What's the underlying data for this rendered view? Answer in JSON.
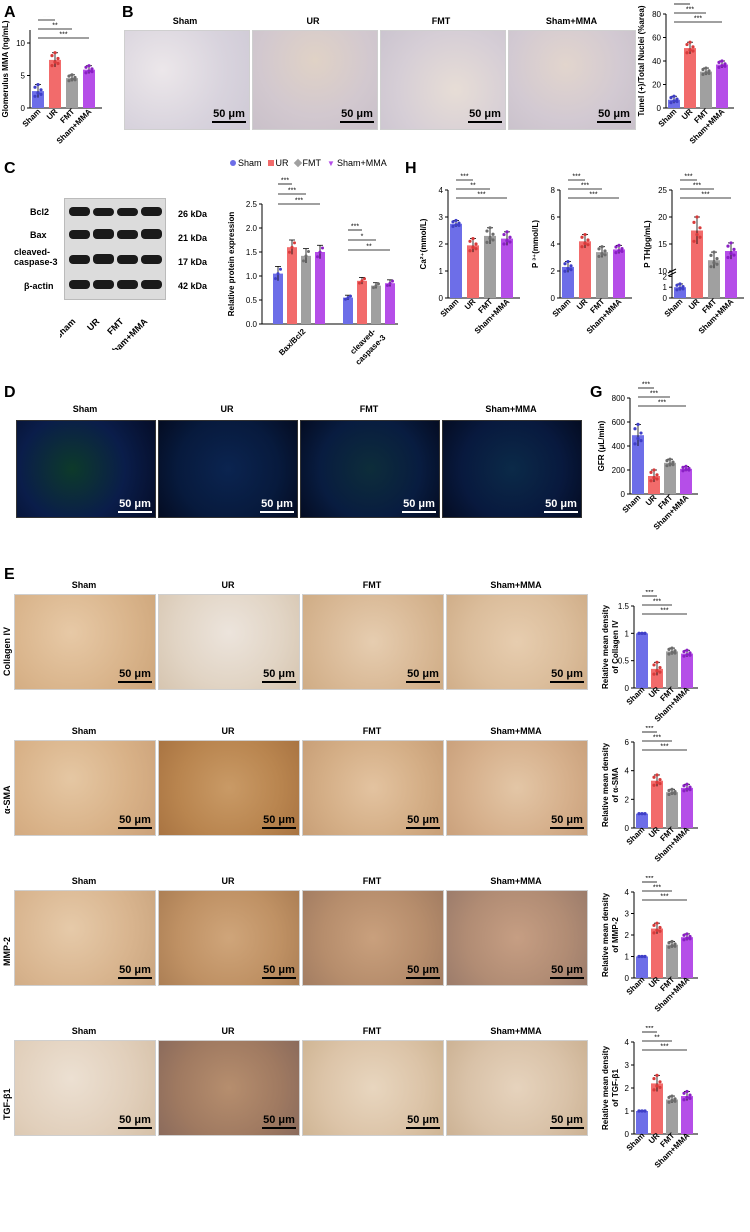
{
  "panels": {
    "A": "A",
    "B": "B",
    "C": "C",
    "D": "D",
    "E": "E",
    "G": "G",
    "H": "H"
  },
  "groups": [
    "Sham",
    "UR",
    "FMT",
    "Sham+MMA"
  ],
  "colors": {
    "Sham": "#6d6ee8",
    "UR": "#f26b6b",
    "FMT": "#a0a0a0",
    "Sham+MMA": "#b54ee8",
    "sham_dot": "#3f3fc7",
    "ur_dot": "#d83a3a",
    "fmt_dot": "#6c6c6c",
    "mma_dot": "#8a1fc5"
  },
  "scalebar_label": "50 μm",
  "micro_titles": [
    "Sham",
    "UR",
    "FMT",
    "Sham+MMA"
  ],
  "western": {
    "bands": [
      {
        "name": "Bcl2",
        "kda": "26 kDa"
      },
      {
        "name": "Bax",
        "kda": "21 kDa"
      },
      {
        "name": "cleaved-\ncaspase-3",
        "kda": "17 kDa"
      },
      {
        "name": "β-actin",
        "kda": "42 kDa"
      }
    ]
  },
  "ihc_rows": [
    "Collagen IV",
    "α-SMA",
    "MMP-2",
    "TGF-β1"
  ],
  "chart_data": [
    {
      "id": "A",
      "type": "bar",
      "categories": [
        "Sham",
        "UR",
        "FMT",
        "Sham+MMA"
      ],
      "values": [
        2.6,
        7.4,
        4.6,
        5.9
      ],
      "errors": [
        1.0,
        1.1,
        0.5,
        0.6
      ],
      "ylabel": "Glomerulus MMA (ng/mL)",
      "ylim": [
        0,
        12
      ],
      "yticks": [
        0,
        5,
        10
      ],
      "sig": [
        {
          "a": 0,
          "b": 1,
          "t": "***"
        },
        {
          "a": 0,
          "b": 2,
          "t": "**"
        },
        {
          "a": 0,
          "b": 3,
          "t": "***"
        }
      ]
    },
    {
      "id": "B",
      "type": "bar",
      "categories": [
        "Sham",
        "UR",
        "FMT",
        "Sham+MMA"
      ],
      "values": [
        7,
        51,
        31,
        37
      ],
      "errors": [
        3,
        5,
        3,
        3
      ],
      "ylabel": "Tunel (+)/Total Nuclei (%area)",
      "ylim": [
        0,
        80
      ],
      "yticks": [
        0,
        20,
        40,
        60,
        80
      ],
      "sig": [
        {
          "a": 0,
          "b": 1,
          "t": "***"
        },
        {
          "a": 0,
          "b": 2,
          "t": "***"
        },
        {
          "a": 0,
          "b": 3,
          "t": "***"
        }
      ]
    },
    {
      "id": "C",
      "type": "bar",
      "categories": [
        "Bax/Bcl2",
        "cleaved-\ncaspase-3"
      ],
      "series": [
        {
          "name": "Sham",
          "values": [
            1.05,
            0.55
          ],
          "errors": [
            0.15,
            0.05
          ]
        },
        {
          "name": "UR",
          "values": [
            1.6,
            0.9
          ],
          "errors": [
            0.15,
            0.07
          ]
        },
        {
          "name": "FMT",
          "values": [
            1.42,
            0.8
          ],
          "errors": [
            0.15,
            0.06
          ]
        },
        {
          "name": "Sham+MMA",
          "values": [
            1.5,
            0.85
          ],
          "errors": [
            0.14,
            0.07
          ]
        }
      ],
      "ylabel": "Relative protein expression",
      "ylim": [
        0,
        2.5
      ],
      "yticks": [
        0.0,
        0.5,
        1.0,
        1.5,
        2.0,
        2.5
      ],
      "sig": [
        {
          "c": 0,
          "a": 0,
          "b": 1,
          "t": "***"
        },
        {
          "c": 0,
          "a": 0,
          "b": 2,
          "t": "***"
        },
        {
          "c": 0,
          "a": 0,
          "b": 3,
          "t": "***"
        },
        {
          "c": 1,
          "a": 0,
          "b": 1,
          "t": "***"
        },
        {
          "c": 1,
          "a": 0,
          "b": 2,
          "t": "*"
        },
        {
          "c": 1,
          "a": 0,
          "b": 3,
          "t": "**"
        }
      ]
    },
    {
      "id": "H1",
      "type": "bar",
      "categories": [
        "Sham",
        "UR",
        "FMT",
        "Sham+MMA"
      ],
      "values": [
        2.75,
        1.95,
        2.3,
        2.2
      ],
      "errors": [
        0.12,
        0.25,
        0.3,
        0.25
      ],
      "ylabel": "Ca²⁺(mmol/L)",
      "ylim": [
        0,
        4
      ],
      "yticks": [
        0,
        1,
        2,
        3,
        4
      ],
      "sig": [
        {
          "a": 0,
          "b": 1,
          "t": "***"
        },
        {
          "a": 0,
          "b": 2,
          "t": "**"
        },
        {
          "a": 0,
          "b": 3,
          "t": "***"
        }
      ]
    },
    {
      "id": "H2",
      "type": "bar",
      "categories": [
        "Sham",
        "UR",
        "FMT",
        "Sham+MMA"
      ],
      "values": [
        2.3,
        4.2,
        3.4,
        3.6
      ],
      "errors": [
        0.4,
        0.5,
        0.4,
        0.3
      ],
      "ylabel": "P ³⁺(mmol/L)",
      "ylim": [
        0,
        8
      ],
      "yticks": [
        0,
        2,
        4,
        6,
        8
      ],
      "sig": [
        {
          "a": 0,
          "b": 1,
          "t": "***"
        },
        {
          "a": 0,
          "b": 2,
          "t": "***"
        },
        {
          "a": 0,
          "b": 3,
          "t": "***"
        }
      ]
    },
    {
      "id": "H3",
      "type": "bar",
      "categories": [
        "Sham",
        "UR",
        "FMT",
        "Sham+MMA"
      ],
      "values": [
        1.0,
        17.5,
        12.0,
        13.7
      ],
      "errors": [
        0.3,
        2.5,
        1.5,
        1.5
      ],
      "ylabel": "P TH(pg/mL)",
      "ylim": [
        0,
        25
      ],
      "yticks": [
        0,
        1,
        2,
        10,
        15,
        20,
        25
      ],
      "broken_axis": [
        2,
        10
      ],
      "sig": [
        {
          "a": 0,
          "b": 1,
          "t": "***"
        },
        {
          "a": 0,
          "b": 2,
          "t": "***"
        },
        {
          "a": 0,
          "b": 3,
          "t": "***"
        }
      ]
    },
    {
      "id": "G",
      "type": "bar",
      "categories": [
        "Sham",
        "UR",
        "FMT",
        "Sham+MMA"
      ],
      "values": [
        490,
        150,
        260,
        210
      ],
      "errors": [
        90,
        50,
        30,
        20
      ],
      "ylabel": "GFR (μL/min)",
      "ylim": [
        0,
        800
      ],
      "yticks": [
        0,
        200,
        400,
        600,
        800
      ],
      "sig": [
        {
          "a": 0,
          "b": 1,
          "t": "***"
        },
        {
          "a": 0,
          "b": 2,
          "t": "***"
        },
        {
          "a": 0,
          "b": 3,
          "t": "***"
        }
      ]
    },
    {
      "id": "E1",
      "type": "bar",
      "categories": [
        "Sham",
        "UR",
        "FMT",
        "Sham+MMA"
      ],
      "values": [
        1.0,
        0.35,
        0.67,
        0.63
      ],
      "errors": [
        0.0,
        0.12,
        0.06,
        0.06
      ],
      "ylabel": "Relative mean density\nof Collagen IV",
      "ylim": [
        0,
        1.5
      ],
      "yticks": [
        0.0,
        0.5,
        1.0,
        1.5
      ],
      "sig": [
        {
          "a": 0,
          "b": 1,
          "t": "***"
        },
        {
          "a": 0,
          "b": 2,
          "t": "***"
        },
        {
          "a": 0,
          "b": 3,
          "t": "***"
        }
      ]
    },
    {
      "id": "E2",
      "type": "bar",
      "categories": [
        "Sham",
        "UR",
        "FMT",
        "Sham+MMA"
      ],
      "values": [
        1.0,
        3.3,
        2.5,
        2.8
      ],
      "errors": [
        0.0,
        0.4,
        0.2,
        0.25
      ],
      "ylabel": "Relative mean density\nof α-SMA",
      "ylim": [
        0,
        6
      ],
      "yticks": [
        0,
        2,
        4,
        6
      ],
      "sig": [
        {
          "a": 0,
          "b": 1,
          "t": "***"
        },
        {
          "a": 0,
          "b": 2,
          "t": "***"
        },
        {
          "a": 0,
          "b": 3,
          "t": "***"
        }
      ]
    },
    {
      "id": "E3",
      "type": "bar",
      "categories": [
        "Sham",
        "UR",
        "FMT",
        "Sham+MMA"
      ],
      "values": [
        1.0,
        2.3,
        1.55,
        1.9
      ],
      "errors": [
        0.0,
        0.25,
        0.15,
        0.15
      ],
      "ylabel": "Relative mean density\nof MMP-2",
      "ylim": [
        0,
        4
      ],
      "yticks": [
        0,
        1,
        2,
        3,
        4
      ],
      "sig": [
        {
          "a": 0,
          "b": 1,
          "t": "***"
        },
        {
          "a": 0,
          "b": 2,
          "t": "***"
        },
        {
          "a": 0,
          "b": 3,
          "t": "***"
        }
      ]
    },
    {
      "id": "E4",
      "type": "bar",
      "categories": [
        "Sham",
        "UR",
        "FMT",
        "Sham+MMA"
      ],
      "values": [
        1.0,
        2.2,
        1.5,
        1.65
      ],
      "errors": [
        0.0,
        0.35,
        0.15,
        0.2
      ],
      "ylabel": "Relative mean density\nof TGF-β1",
      "ylim": [
        0,
        4
      ],
      "yticks": [
        0,
        1,
        2,
        3,
        4
      ],
      "sig": [
        {
          "a": 0,
          "b": 1,
          "t": "***"
        },
        {
          "a": 0,
          "b": 2,
          "t": "**"
        },
        {
          "a": 0,
          "b": 3,
          "t": "***"
        }
      ]
    }
  ]
}
